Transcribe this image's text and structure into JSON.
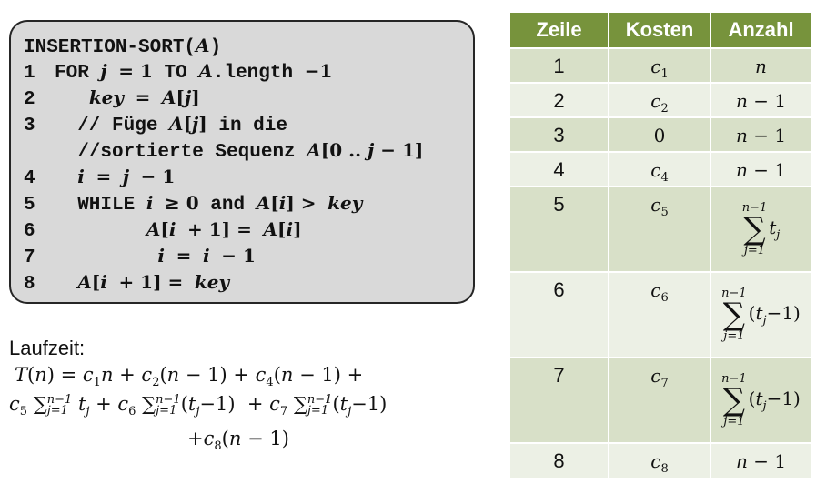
{
  "code": {
    "title": "INSERTION-SORT(A)",
    "lines": [
      {
        "num": "1",
        "text": "FOR j = 1 TO A.length −1"
      },
      {
        "num": "2",
        "text": "key = A[j]"
      },
      {
        "num": "3",
        "text": "// Füge A[j] in die"
      },
      {
        "num": "",
        "text": "//sortierte Sequenz A[0 .. j − 1]"
      },
      {
        "num": "4",
        "text": "i = j − 1"
      },
      {
        "num": "5",
        "text": "WHILE i ≥ 0 and A[i] > key"
      },
      {
        "num": "6",
        "text": "A[i + 1] = A[i]"
      },
      {
        "num": "7",
        "text": "i = i − 1"
      },
      {
        "num": "8",
        "text": "A[i + 1] = key"
      }
    ]
  },
  "runtime": {
    "label": "Laufzeit:",
    "line1": "T(n) = c1n + c2(n − 1) + c4(n − 1) +",
    "line2": "c5 ∑j=1n−1 tj + c6 ∑j=1n−1(tj−1) + c7 ∑j=1n−1(tj−1)",
    "line3": "+c8(n − 1)"
  },
  "table": {
    "headers": [
      "Zeile",
      "Kosten",
      "Anzahl"
    ],
    "rows": [
      {
        "zeile": "1",
        "kosten": "c1",
        "anzahl": "n"
      },
      {
        "zeile": "2",
        "kosten": "c2",
        "anzahl": "n − 1"
      },
      {
        "zeile": "3",
        "kosten": "0",
        "anzahl": "n − 1"
      },
      {
        "zeile": "4",
        "kosten": "c4",
        "anzahl": "n − 1"
      },
      {
        "zeile": "5",
        "kosten": "c5",
        "anzahl": "∑j=1n−1 tj"
      },
      {
        "zeile": "6",
        "kosten": "c6",
        "anzahl": "∑j=1n−1 (tj−1)"
      },
      {
        "zeile": "7",
        "kosten": "c7",
        "anzahl": "∑j=1n−1 (tj−1)"
      },
      {
        "zeile": "8",
        "kosten": "c8",
        "anzahl": "n − 1"
      }
    ],
    "header_color": "#77933c",
    "row_color_odd": "#d8e0c8",
    "row_color_even": "#ecf0e5"
  }
}
